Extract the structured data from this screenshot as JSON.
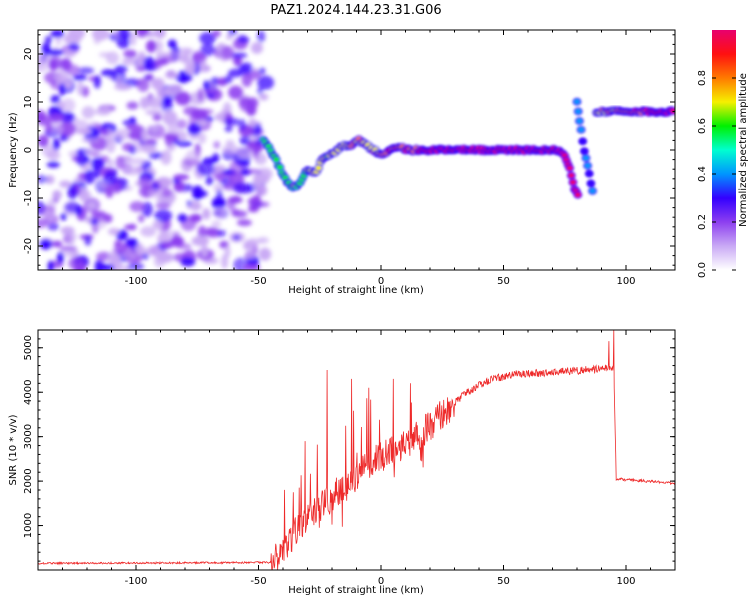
{
  "title": "PAZ1.2024.144.23.31.G06",
  "colors": {
    "snr_line": "#ee2a2a",
    "frame": "#000000"
  },
  "chart_data": [
    {
      "type": "heatmap",
      "title": "",
      "xlabel": "Height of straight line (km)",
      "ylabel": "Frequency (Hz)",
      "xlim": [
        -140,
        120
      ],
      "ylim": [
        -25,
        25
      ],
      "xticks": [
        -100,
        -50,
        0,
        50,
        100
      ],
      "yticks": [
        -20,
        -10,
        0,
        10,
        20
      ],
      "colorbar": {
        "label": "Normalized spectral amplitude",
        "range": [
          0,
          1
        ],
        "ticks": [
          "0.0",
          "0.2",
          "0.4",
          "0.6",
          "0.8"
        ],
        "colormap": [
          "#ffffff",
          "#c9a9f5",
          "#8d3ff0",
          "#3300ff",
          "#0095ff",
          "#00ffd0",
          "#00f000",
          "#f6f000",
          "#ff7a00",
          "#ff1010",
          "#e8006e"
        ]
      },
      "noise_region": {
        "x_range": [
          -140,
          -47
        ],
        "f_range": [
          -25,
          25
        ],
        "level": 0.3
      },
      "ridge": [
        {
          "x": -48,
          "f": 2
        },
        {
          "x": -45,
          "f": 0
        },
        {
          "x": -42,
          "f": -3
        },
        {
          "x": -39,
          "f": -6
        },
        {
          "x": -36,
          "f": -8
        },
        {
          "x": -33,
          "f": -7
        },
        {
          "x": -30,
          "f": -4
        },
        {
          "x": -27,
          "f": -5
        },
        {
          "x": -24,
          "f": -2
        },
        {
          "x": -21,
          "f": -1
        },
        {
          "x": -18,
          "f": 0
        },
        {
          "x": -15,
          "f": 1
        },
        {
          "x": -12,
          "f": 1
        },
        {
          "x": -9,
          "f": 2
        },
        {
          "x": -6,
          "f": 1
        },
        {
          "x": -3,
          "f": 0
        },
        {
          "x": 0,
          "f": -1
        },
        {
          "x": 4,
          "f": 0
        },
        {
          "x": 8,
          "f": 0.5
        },
        {
          "x": 12,
          "f": 0
        },
        {
          "x": 20,
          "f": 0
        },
        {
          "x": 40,
          "f": 0
        },
        {
          "x": 60,
          "f": 0
        },
        {
          "x": 72,
          "f": 0
        },
        {
          "x": 75,
          "f": -1
        },
        {
          "x": 77,
          "f": -4
        },
        {
          "x": 79,
          "f": -8
        },
        {
          "x": 81,
          "f": -10
        }
      ],
      "second_branch": [
        {
          "x": 80,
          "f": 10
        },
        {
          "x": 81,
          "f": 6
        },
        {
          "x": 83,
          "f": 0
        },
        {
          "x": 85,
          "f": -5
        },
        {
          "x": 87,
          "f": -10
        }
      ],
      "upper_line": {
        "x_range": [
          88,
          120
        ],
        "f": 8
      }
    },
    {
      "type": "line",
      "title": "",
      "xlabel": "Height of straight line (km)",
      "ylabel": "SNR (10 * v/v)",
      "xlim": [
        -140,
        120
      ],
      "ylim": [
        0,
        5400
      ],
      "xticks": [
        -100,
        -50,
        0,
        50,
        100
      ],
      "yticks": [
        1000,
        2000,
        3000,
        4000,
        5000
      ],
      "trend": [
        {
          "x": -140,
          "y": 150
        },
        {
          "x": -45,
          "y": 170
        },
        {
          "x": -40,
          "y": 400
        },
        {
          "x": -35,
          "y": 900
        },
        {
          "x": -25,
          "y": 1400
        },
        {
          "x": -15,
          "y": 1900
        },
        {
          "x": -5,
          "y": 2400
        },
        {
          "x": 5,
          "y": 2700
        },
        {
          "x": 15,
          "y": 3000
        },
        {
          "x": 25,
          "y": 3500
        },
        {
          "x": 35,
          "y": 4000
        },
        {
          "x": 45,
          "y": 4300
        },
        {
          "x": 55,
          "y": 4400
        },
        {
          "x": 70,
          "y": 4450
        },
        {
          "x": 85,
          "y": 4500
        },
        {
          "x": 95,
          "y": 4550
        },
        {
          "x": 96,
          "y": 2050
        },
        {
          "x": 120,
          "y": 1950
        }
      ],
      "spikes": [
        {
          "x": -31,
          "y": 2900
        },
        {
          "x": -22,
          "y": 4500
        },
        {
          "x": -12,
          "y": 4300
        },
        {
          "x": -5,
          "y": 4100
        },
        {
          "x": 5,
          "y": 4300
        },
        {
          "x": 12,
          "y": 4200
        },
        {
          "x": 93,
          "y": 5150
        },
        {
          "x": 95,
          "y": 5400
        }
      ]
    }
  ]
}
